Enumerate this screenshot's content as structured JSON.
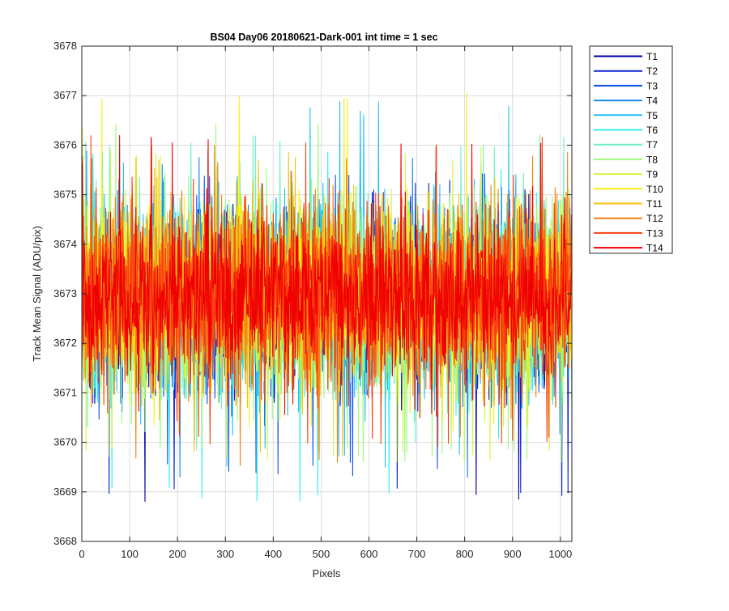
{
  "chart_data": {
    "type": "line",
    "title": "BS04 Day06 20180621-Dark-001 int time = 1 sec",
    "xlabel": "Pixels",
    "ylabel": "Track Mean Signal (ADU/pix)",
    "xlim": [
      0,
      1024
    ],
    "ylim": [
      3668,
      3678
    ],
    "xticks": [
      0,
      100,
      200,
      300,
      400,
      500,
      600,
      700,
      800,
      900,
      1000
    ],
    "yticks": [
      3668,
      3669,
      3670,
      3671,
      3672,
      3673,
      3674,
      3675,
      3676,
      3677,
      3678
    ],
    "grid": true,
    "legend_position": "outside-right-top",
    "n_points": 1024,
    "series": [
      {
        "name": "T1",
        "color": "#0000aa",
        "mean": 3672.7,
        "min": 3668.75,
        "max": 3675.1
      },
      {
        "name": "T2",
        "color": "#0a22d8",
        "mean": 3672.8,
        "min": 3668.9,
        "max": 3675.3
      },
      {
        "name": "T3",
        "color": "#1550ee",
        "mean": 3672.8,
        "min": 3669.3,
        "max": 3675.5
      },
      {
        "name": "T4",
        "color": "#1a88f0",
        "mean": 3672.9,
        "min": 3669.1,
        "max": 3675.9
      },
      {
        "name": "T5",
        "color": "#22c0f2",
        "mean": 3672.9,
        "min": 3669.5,
        "max": 3676.9
      },
      {
        "name": "T6",
        "color": "#2ef0f0",
        "mean": 3672.9,
        "min": 3668.8,
        "max": 3676.1
      },
      {
        "name": "T7",
        "color": "#6ef2c4",
        "mean": 3672.9,
        "min": 3669.8,
        "max": 3676.25
      },
      {
        "name": "T8",
        "color": "#a0f87e",
        "mean": 3673.0,
        "min": 3669.6,
        "max": 3676.7
      },
      {
        "name": "T9",
        "color": "#d4f840",
        "mean": 3673.0,
        "min": 3669.6,
        "max": 3676.0
      },
      {
        "name": "T10",
        "color": "#f8f010",
        "mean": 3673.0,
        "min": 3670.2,
        "max": 3677.2
      },
      {
        "name": "T11",
        "color": "#f8c010",
        "mean": 3673.0,
        "min": 3669.7,
        "max": 3675.9
      },
      {
        "name": "T12",
        "color": "#f88010",
        "mean": 3673.0,
        "min": 3669.4,
        "max": 3676.0
      },
      {
        "name": "T13",
        "color": "#f84010",
        "mean": 3673.0,
        "min": 3669.9,
        "max": 3676.2
      },
      {
        "name": "T14",
        "color": "#f00000",
        "mean": 3673.0,
        "min": 3670.5,
        "max": 3676.3
      }
    ]
  }
}
